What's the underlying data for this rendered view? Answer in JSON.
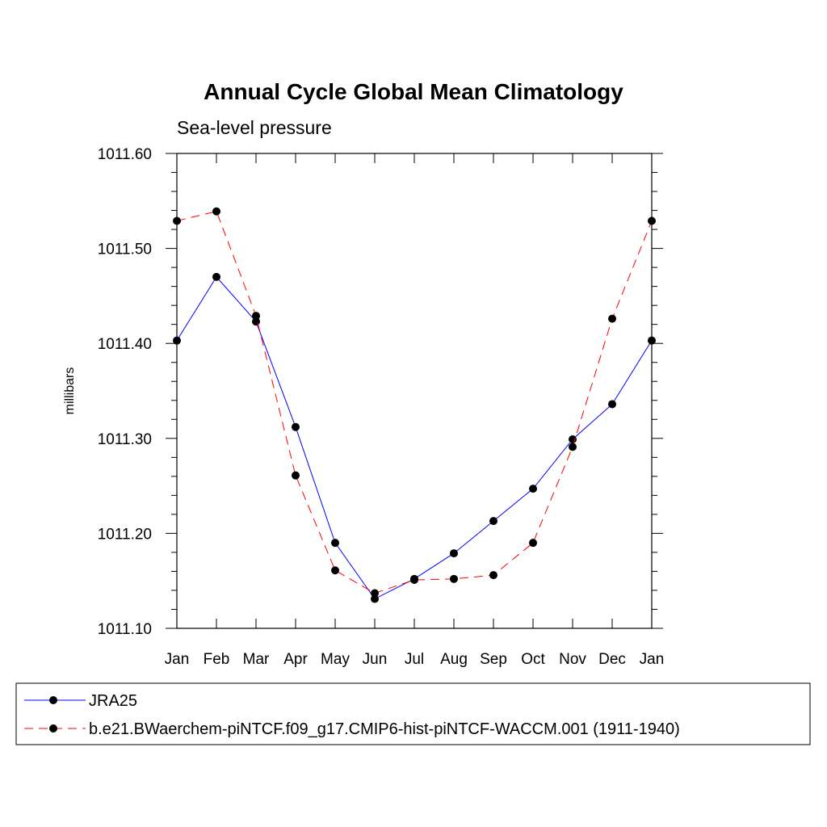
{
  "chart_data": {
    "type": "line",
    "title": "Annual Cycle Global Mean Climatology",
    "subtitle": "Sea-level pressure",
    "xlabel": "",
    "ylabel": "millibars",
    "categories": [
      "Jan",
      "Feb",
      "Mar",
      "Apr",
      "May",
      "Jun",
      "Jul",
      "Aug",
      "Sep",
      "Oct",
      "Nov",
      "Dec",
      "Jan"
    ],
    "ylim": [
      1011.1,
      1011.6
    ],
    "yticks": [
      "1011.10",
      "1011.20",
      "1011.30",
      "1011.40",
      "1011.50",
      "1011.60"
    ],
    "ytick_values": [
      1011.1,
      1011.2,
      1011.3,
      1011.4,
      1011.5,
      1011.6
    ],
    "grid": false,
    "legend_position": "bottom",
    "series": [
      {
        "name": "JRA25",
        "color": "#0000ff",
        "line_style": "solid",
        "marker": "filled-circle",
        "values": [
          1011.403,
          1011.47,
          1011.423,
          1011.312,
          1011.19,
          1011.131,
          1011.152,
          1011.179,
          1011.213,
          1011.247,
          1011.299,
          1011.336,
          1011.403
        ]
      },
      {
        "name": "b.e21.BWaerchem-piNTCF.f09_g17.CMIP6-hist-piNTCF-WACCM.001 (1911-1940)",
        "color": "#ff0000",
        "line_style": "dashed",
        "marker": "filled-circle",
        "values": [
          1011.529,
          1011.539,
          1011.429,
          1011.261,
          1011.161,
          1011.137,
          1011.151,
          1011.152,
          1011.156,
          1011.19,
          1011.291,
          1011.426,
          1011.529
        ]
      }
    ]
  }
}
